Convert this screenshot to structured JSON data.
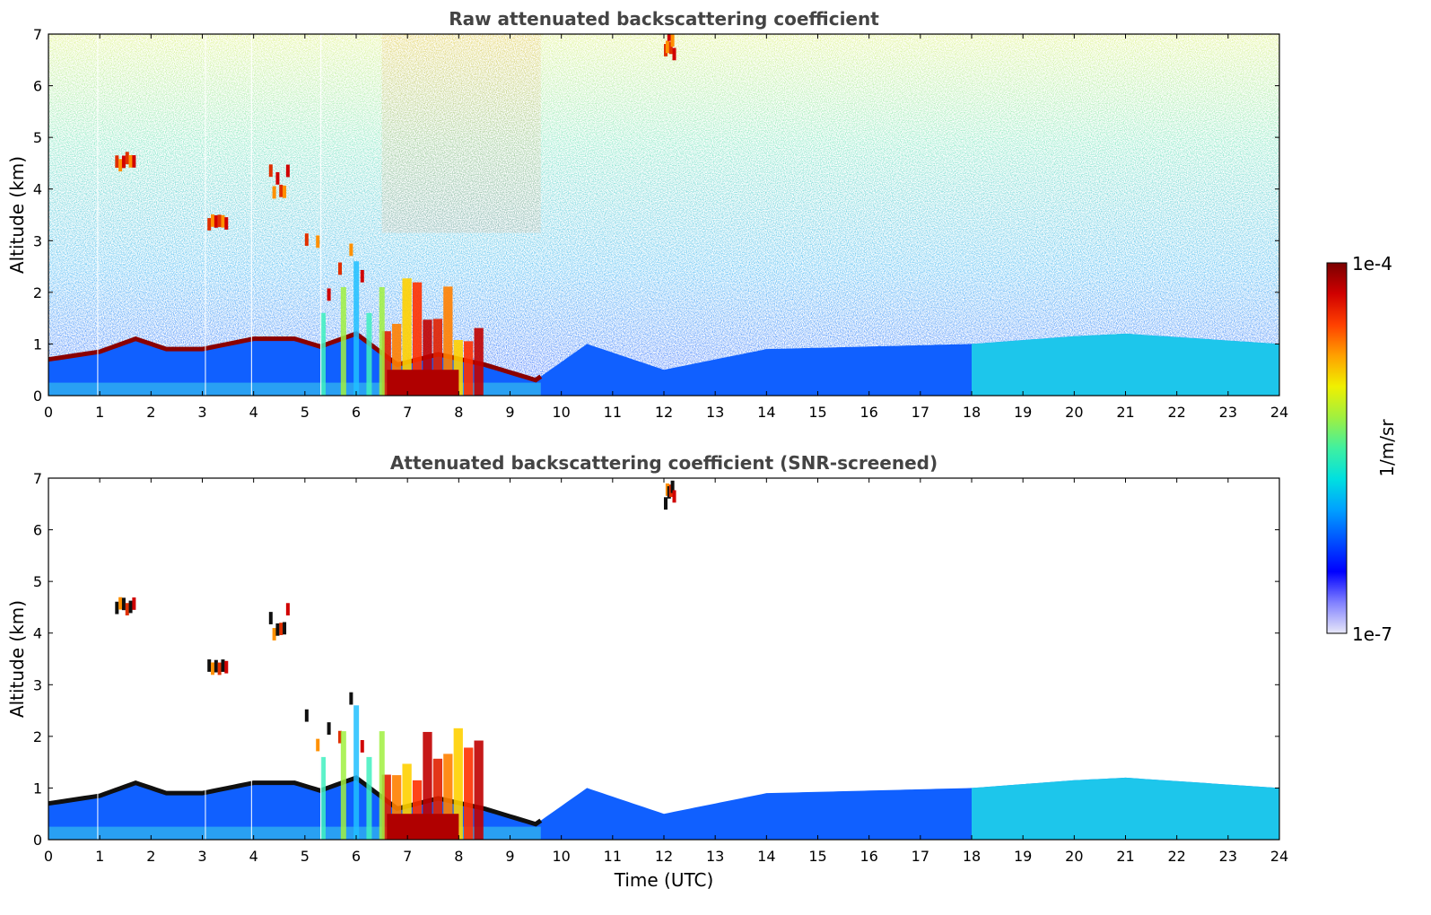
{
  "chart_data": [
    {
      "type": "heatmap",
      "title": "Raw attenuated backscattering coefficient",
      "xlabel": "",
      "ylabel": "Altitude (km)",
      "xlim": [
        0,
        24
      ],
      "ylim": [
        0,
        7
      ],
      "xticks": [
        "0",
        "1",
        "2",
        "3",
        "4",
        "5",
        "6",
        "7",
        "8",
        "9",
        "10",
        "11",
        "12",
        "13",
        "14",
        "15",
        "16",
        "17",
        "18",
        "19",
        "20",
        "21",
        "22",
        "23",
        "24"
      ],
      "yticks": [
        "0",
        "1",
        "2",
        "3",
        "4",
        "5",
        "6",
        "7"
      ],
      "grid": false,
      "boundary_layer_top_km": [
        {
          "t": 0,
          "h": 0.7
        },
        {
          "t": 1,
          "h": 0.85
        },
        {
          "t": 1.7,
          "h": 1.1
        },
        {
          "t": 2.3,
          "h": 0.9
        },
        {
          "t": 3,
          "h": 0.9
        },
        {
          "t": 4,
          "h": 1.1
        },
        {
          "t": 4.8,
          "h": 1.1
        },
        {
          "t": 5.3,
          "h": 0.95
        },
        {
          "t": 6,
          "h": 1.2
        },
        {
          "t": 6.8,
          "h": 0.6
        },
        {
          "t": 7.6,
          "h": 0.8
        },
        {
          "t": 8.5,
          "h": 0.6
        },
        {
          "t": 9.5,
          "h": 0.3
        },
        {
          "t": 10.5,
          "h": 1.0
        },
        {
          "t": 12,
          "h": 0.5
        },
        {
          "t": 14,
          "h": 0.9
        },
        {
          "t": 16,
          "h": 0.95
        },
        {
          "t": 18,
          "h": 1.0
        },
        {
          "t": 20,
          "h": 1.15
        },
        {
          "t": 21,
          "h": 1.2
        },
        {
          "t": 24,
          "h": 1.0
        }
      ],
      "cloud_layers_km": [
        {
          "t0": 1.3,
          "t1": 1.7,
          "h0": 4.4,
          "h1": 4.6
        },
        {
          "t0": 3.1,
          "t1": 3.5,
          "h0": 3.3,
          "h1": 3.4
        },
        {
          "t0": 4.3,
          "t1": 4.7,
          "h0": 3.8,
          "h1": 4.5
        },
        {
          "t0": 5.0,
          "t1": 6.3,
          "h0": 1.8,
          "h1": 3.2
        },
        {
          "t0": 6.5,
          "t1": 8.5,
          "h0": 0.0,
          "h1": 2.4
        },
        {
          "t0": 12.0,
          "t1": 12.2,
          "h0": 6.5,
          "h1": 7.0
        }
      ]
    },
    {
      "type": "heatmap",
      "title": "Attenuated backscattering coefficient (SNR-screened)",
      "xlabel": "Time (UTC)",
      "ylabel": "Altitude (km)",
      "xlim": [
        0,
        24
      ],
      "ylim": [
        0,
        7
      ],
      "xticks": [
        "0",
        "1",
        "2",
        "3",
        "4",
        "5",
        "6",
        "7",
        "8",
        "9",
        "10",
        "11",
        "12",
        "13",
        "14",
        "15",
        "16",
        "17",
        "18",
        "19",
        "20",
        "21",
        "22",
        "23",
        "24"
      ],
      "yticks": [
        "0",
        "1",
        "2",
        "3",
        "4",
        "5",
        "6",
        "7"
      ],
      "grid": false
    }
  ],
  "colorbar": {
    "label": "1/m/sr",
    "max_label": "1e-4",
    "min_label": "1e-7",
    "colors": [
      "#e8e8f8",
      "#8080ff",
      "#0000ff",
      "#0050ff",
      "#00a0ff",
      "#00e0e0",
      "#40f0a0",
      "#a0f040",
      "#f0f000",
      "#ffa000",
      "#ff4000",
      "#d00000",
      "#7a0000"
    ]
  }
}
